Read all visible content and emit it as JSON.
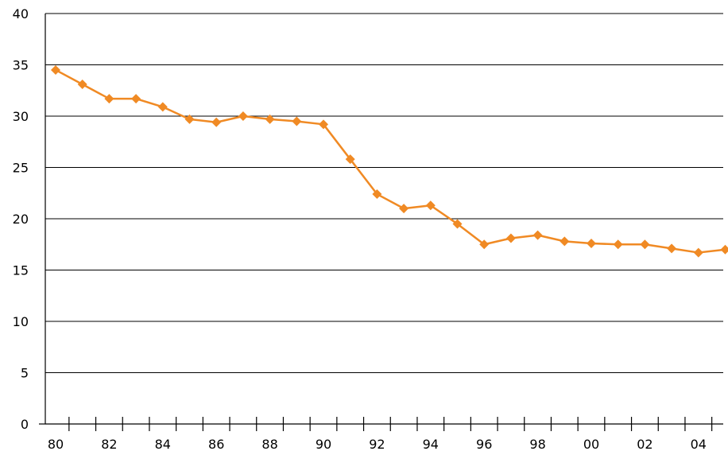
{
  "chart_data": {
    "type": "line",
    "title": "",
    "xlabel": "",
    "ylabel": "",
    "x": [
      1980,
      1981,
      1982,
      1983,
      1984,
      1985,
      1986,
      1987,
      1988,
      1989,
      1990,
      1991,
      1992,
      1993,
      1994,
      1995,
      1996,
      1997,
      1998,
      1999,
      2000,
      2001,
      2002,
      2003,
      2004,
      2005
    ],
    "x_tick_labels": [
      "80",
      "82",
      "84",
      "86",
      "88",
      "90",
      "92",
      "94",
      "96",
      "98",
      "00",
      "02",
      "04"
    ],
    "series": [
      {
        "color": "#F08A24",
        "marker": "diamond",
        "values": [
          34.5,
          33.1,
          31.7,
          31.7,
          30.9,
          29.7,
          29.4,
          30.0,
          29.7,
          29.5,
          29.2,
          25.8,
          22.4,
          21.0,
          21.3,
          19.5,
          17.5,
          18.1,
          18.4,
          17.8,
          17.6,
          17.5,
          17.5,
          17.1,
          16.7,
          17.0
        ]
      }
    ],
    "xlim": [
      1980,
      2005
    ],
    "ylim": [
      0,
      40
    ],
    "y_ticks": [
      0,
      5,
      10,
      15,
      20,
      25,
      30,
      35,
      40
    ],
    "grid": "horizontal",
    "legend": "none"
  }
}
